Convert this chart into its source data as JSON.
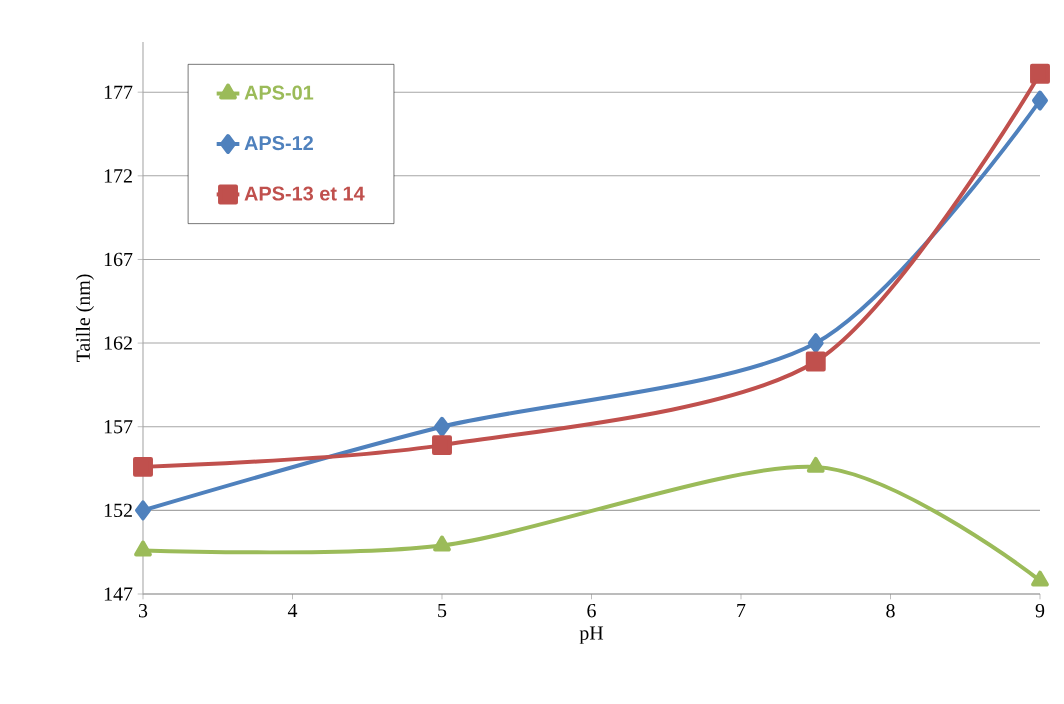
{
  "chart_data": {
    "type": "line",
    "xlabel": "pH",
    "ylabel": "Taille (nm)",
    "x": [
      3,
      5,
      7.5,
      9
    ],
    "series": [
      {
        "name": "APS-01",
        "color": "#9bbb59",
        "marker": "triangle",
        "values": [
          149.6,
          149.9,
          154.6,
          147.8
        ]
      },
      {
        "name": "APS-12",
        "color": "#4f81bd",
        "marker": "diamond",
        "values": [
          152.0,
          157.0,
          162.0,
          176.5
        ]
      },
      {
        "name": "APS-13 et 14",
        "color": "#c0504d",
        "marker": "square",
        "values": [
          154.6,
          155.9,
          160.9,
          178.1
        ]
      }
    ],
    "xlim": [
      3,
      9
    ],
    "xticks": [
      3,
      4,
      5,
      6,
      7,
      8,
      9
    ],
    "ylim": [
      147,
      180
    ],
    "yticks": [
      147,
      152,
      157,
      162,
      167,
      172,
      177
    ],
    "grid": "y",
    "legend": "top left",
    "line_style": "solid"
  }
}
